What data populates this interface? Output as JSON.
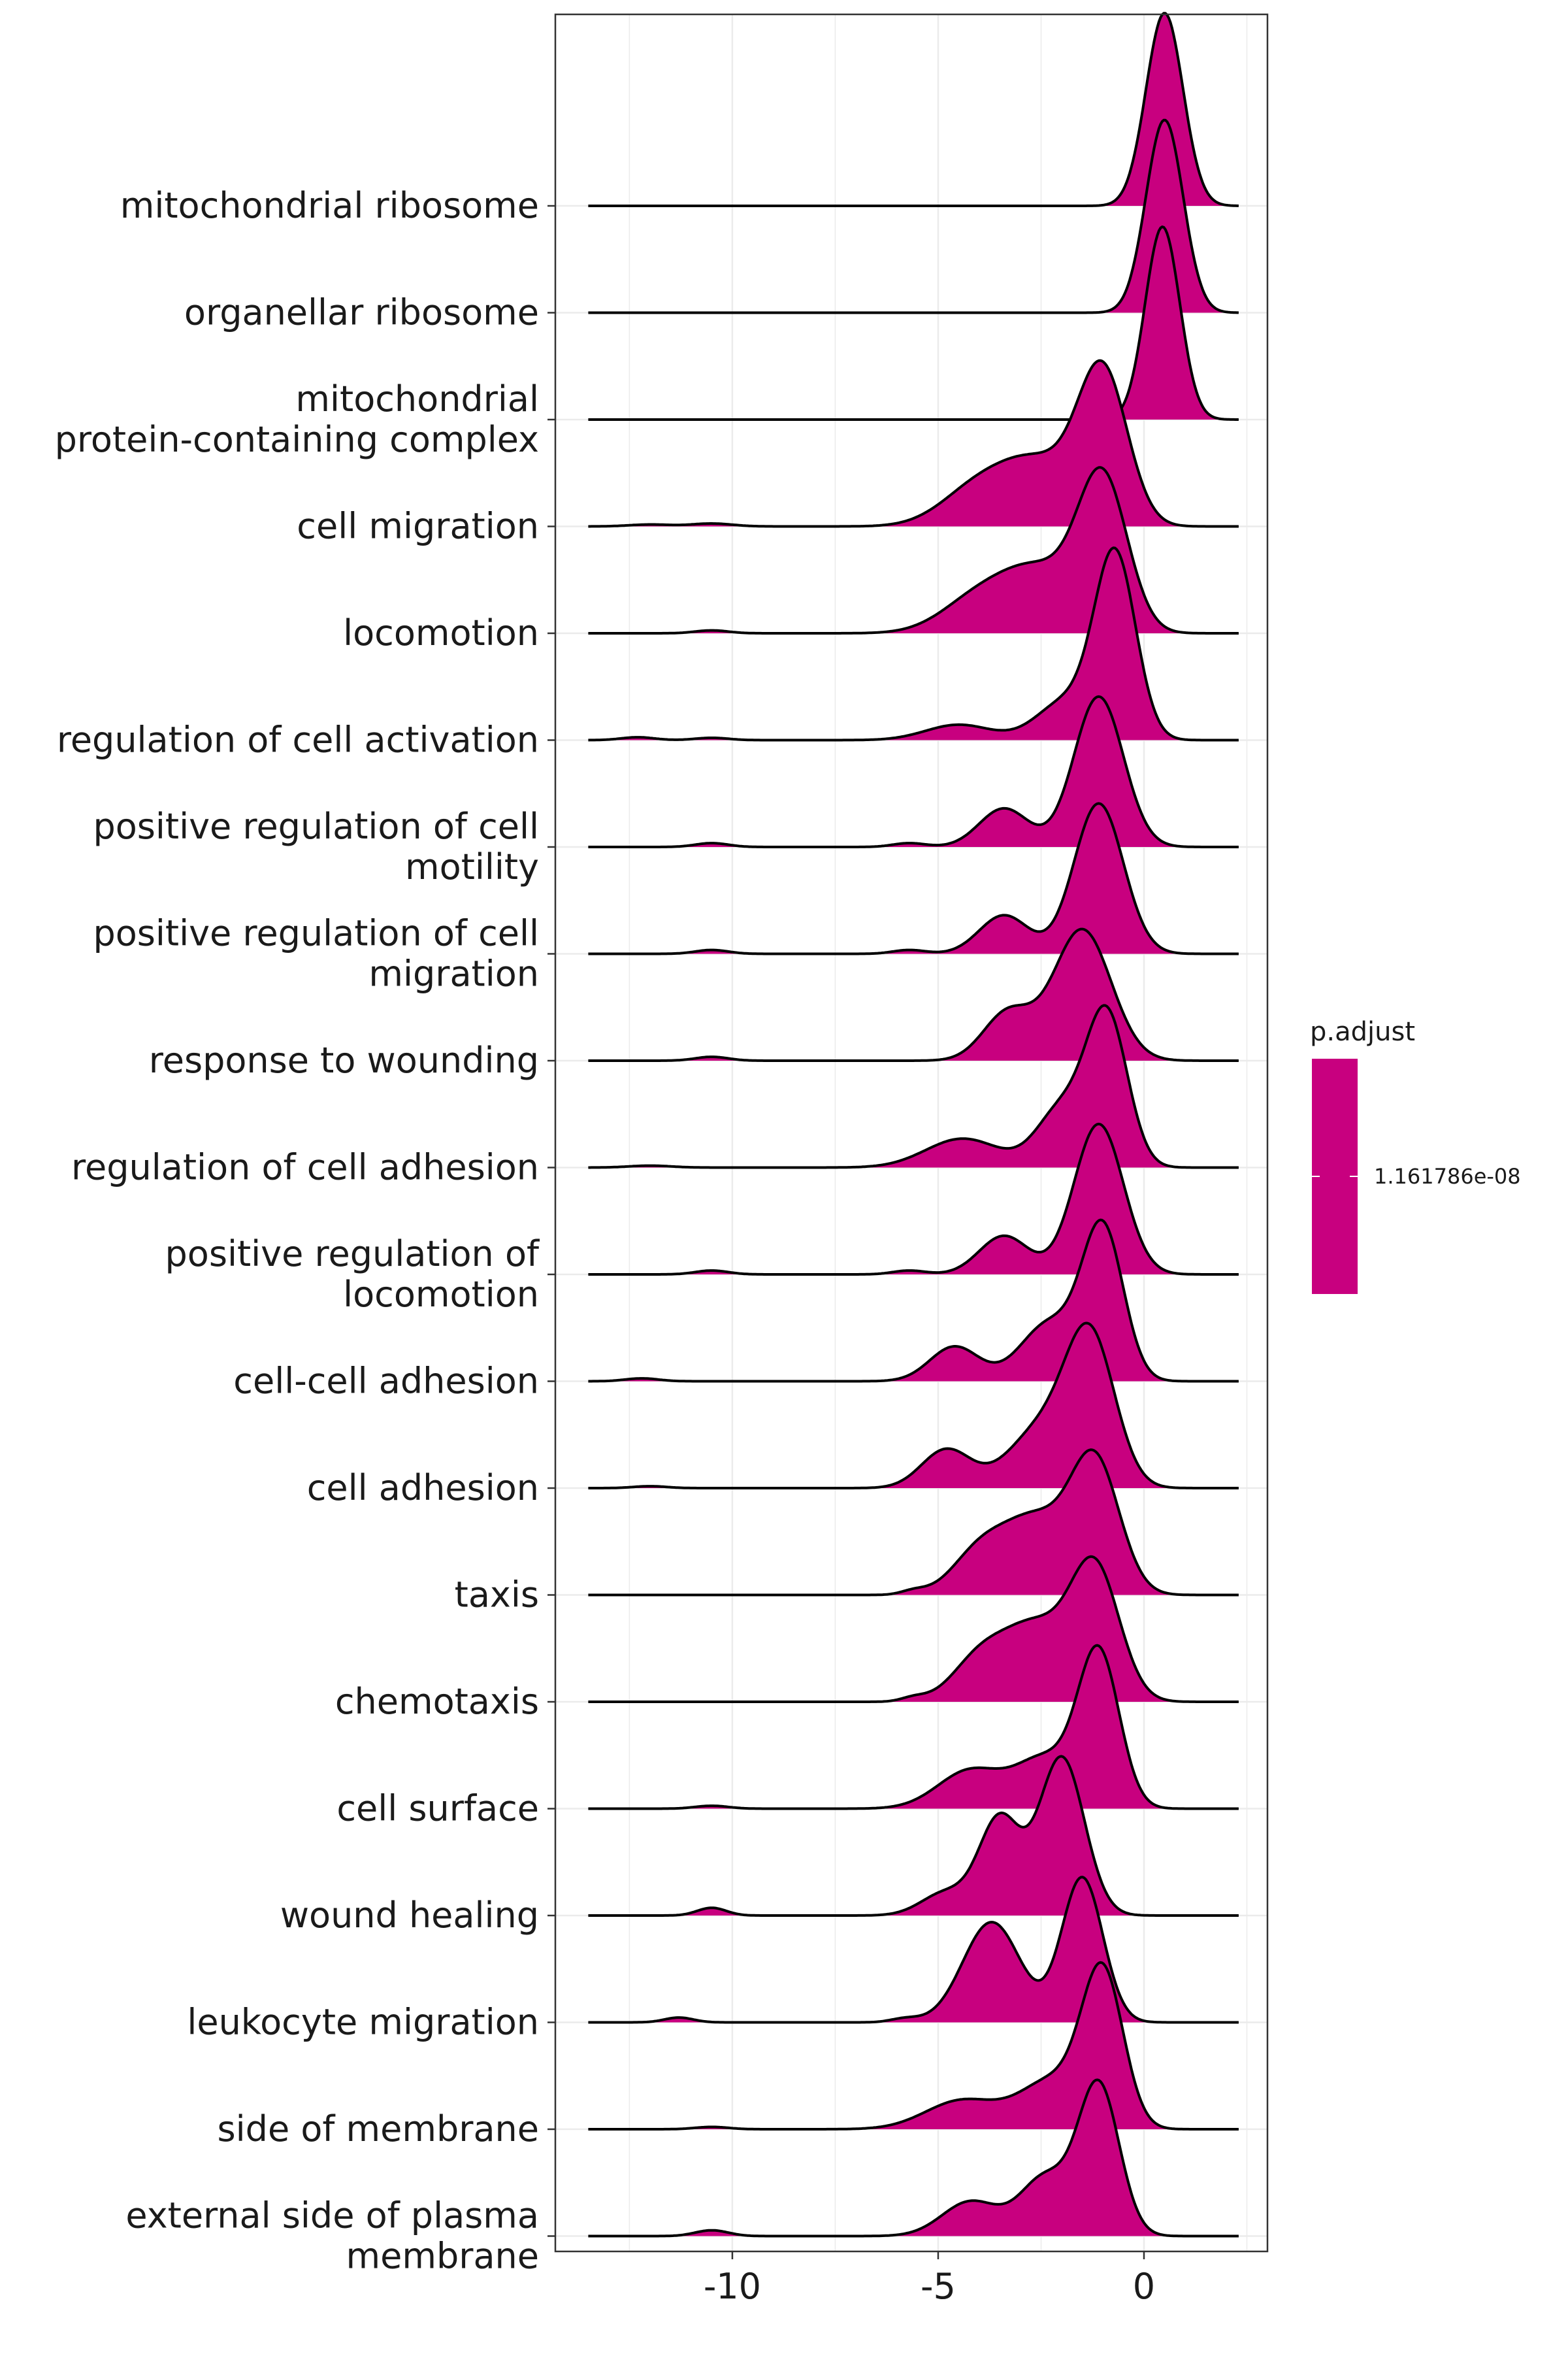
{
  "chart_data": {
    "type": "ridgeline",
    "x_ticks": [
      -10,
      -5,
      0
    ],
    "xlim": [
      -14.3,
      3.0
    ],
    "fill_color": "#C8007F",
    "categories": [
      "mitochondrial ribosome",
      "organellar ribosome",
      "mitochondrial\nprotein-containing complex",
      "cell migration",
      "locomotion",
      "regulation of cell activation",
      "positive regulation of cell\nmotility",
      "positive regulation of cell\nmigration",
      "response to wounding",
      "regulation of cell adhesion",
      "positive regulation of\nlocomotion",
      "cell-cell adhesion",
      "cell adhesion",
      "taxis",
      "chemotaxis",
      "cell surface",
      "wound healing",
      "leukocyte migration",
      "side of membrane",
      "external side of plasma\nmembrane"
    ],
    "densities": [
      {
        "peaks": [
          [
            0.5,
            0.45,
            1.0
          ]
        ]
      },
      {
        "peaks": [
          [
            0.5,
            0.45,
            1.0
          ]
        ]
      },
      {
        "peaks": [
          [
            0.45,
            0.42,
            1.0
          ]
        ]
      },
      {
        "peaks": [
          [
            -1.0,
            0.6,
            0.78
          ],
          [
            -2.5,
            0.9,
            0.3
          ],
          [
            -4.0,
            0.9,
            0.2
          ],
          [
            -10.5,
            0.5,
            0.015
          ],
          [
            -12.0,
            0.5,
            0.01
          ]
        ]
      },
      {
        "peaks": [
          [
            -1.0,
            0.6,
            0.78
          ],
          [
            -2.5,
            0.9,
            0.3
          ],
          [
            -4.0,
            0.9,
            0.18
          ],
          [
            -10.5,
            0.4,
            0.015
          ]
        ]
      },
      {
        "peaks": [
          [
            -0.7,
            0.5,
            0.95
          ],
          [
            -1.9,
            0.7,
            0.2
          ],
          [
            -4.5,
            0.8,
            0.08
          ],
          [
            -12.3,
            0.4,
            0.015
          ],
          [
            -10.5,
            0.4,
            0.012
          ]
        ]
      },
      {
        "peaks": [
          [
            -1.1,
            0.6,
            0.78
          ],
          [
            -3.4,
            0.6,
            0.2
          ],
          [
            -5.7,
            0.4,
            0.02
          ],
          [
            -10.5,
            0.4,
            0.02
          ]
        ]
      },
      {
        "peaks": [
          [
            -1.1,
            0.6,
            0.78
          ],
          [
            -3.4,
            0.6,
            0.2
          ],
          [
            -5.7,
            0.4,
            0.02
          ],
          [
            -10.5,
            0.4,
            0.02
          ]
        ]
      },
      {
        "peaks": [
          [
            -1.5,
            0.7,
            0.68
          ],
          [
            -3.3,
            0.6,
            0.25
          ],
          [
            -10.5,
            0.4,
            0.02
          ]
        ]
      },
      {
        "peaks": [
          [
            -0.9,
            0.5,
            0.78
          ],
          [
            -2.0,
            0.6,
            0.3
          ],
          [
            -4.4,
            0.9,
            0.15
          ],
          [
            -12.0,
            0.5,
            0.01
          ]
        ]
      },
      {
        "peaks": [
          [
            -1.1,
            0.6,
            0.78
          ],
          [
            -3.4,
            0.6,
            0.2
          ],
          [
            -5.7,
            0.4,
            0.02
          ],
          [
            -10.5,
            0.4,
            0.02
          ]
        ]
      },
      {
        "peaks": [
          [
            -1.0,
            0.5,
            0.78
          ],
          [
            -2.3,
            0.7,
            0.3
          ],
          [
            -4.6,
            0.6,
            0.18
          ],
          [
            -12.2,
            0.4,
            0.015
          ]
        ]
      },
      {
        "peaks": [
          [
            -1.3,
            0.6,
            0.75
          ],
          [
            -2.5,
            0.8,
            0.3
          ],
          [
            -4.8,
            0.6,
            0.2
          ],
          [
            -12.0,
            0.4,
            0.01
          ]
        ]
      },
      {
        "peaks": [
          [
            -1.2,
            0.6,
            0.7
          ],
          [
            -2.6,
            0.7,
            0.35
          ],
          [
            -3.9,
            0.7,
            0.25
          ],
          [
            -5.6,
            0.3,
            0.02
          ]
        ]
      },
      {
        "peaks": [
          [
            -1.2,
            0.6,
            0.7
          ],
          [
            -2.6,
            0.7,
            0.35
          ],
          [
            -3.9,
            0.7,
            0.25
          ],
          [
            -5.6,
            0.3,
            0.02
          ]
        ]
      },
      {
        "peaks": [
          [
            -1.1,
            0.5,
            0.8
          ],
          [
            -2.4,
            0.7,
            0.25
          ],
          [
            -4.2,
            0.8,
            0.2
          ],
          [
            -10.5,
            0.4,
            0.015
          ]
        ]
      },
      {
        "peaks": [
          [
            -2.0,
            0.55,
            0.82
          ],
          [
            -3.5,
            0.5,
            0.5
          ],
          [
            -4.8,
            0.6,
            0.12
          ],
          [
            -10.5,
            0.35,
            0.04
          ]
        ]
      },
      {
        "peaks": [
          [
            -1.5,
            0.5,
            0.75
          ],
          [
            -3.7,
            0.7,
            0.52
          ],
          [
            -5.8,
            0.35,
            0.02
          ],
          [
            -11.3,
            0.35,
            0.025
          ]
        ]
      },
      {
        "peaks": [
          [
            -1.0,
            0.5,
            0.78
          ],
          [
            -2.2,
            0.8,
            0.25
          ],
          [
            -4.4,
            0.9,
            0.15
          ],
          [
            -10.5,
            0.4,
            0.012
          ]
        ]
      },
      {
        "peaks": [
          [
            -1.1,
            0.5,
            0.78
          ],
          [
            -2.4,
            0.6,
            0.3
          ],
          [
            -4.2,
            0.7,
            0.18
          ],
          [
            -10.5,
            0.4,
            0.03
          ]
        ]
      }
    ],
    "legend": {
      "title": "p.adjust",
      "label": "1.161786e-08",
      "position": "right"
    },
    "grid": true
  }
}
